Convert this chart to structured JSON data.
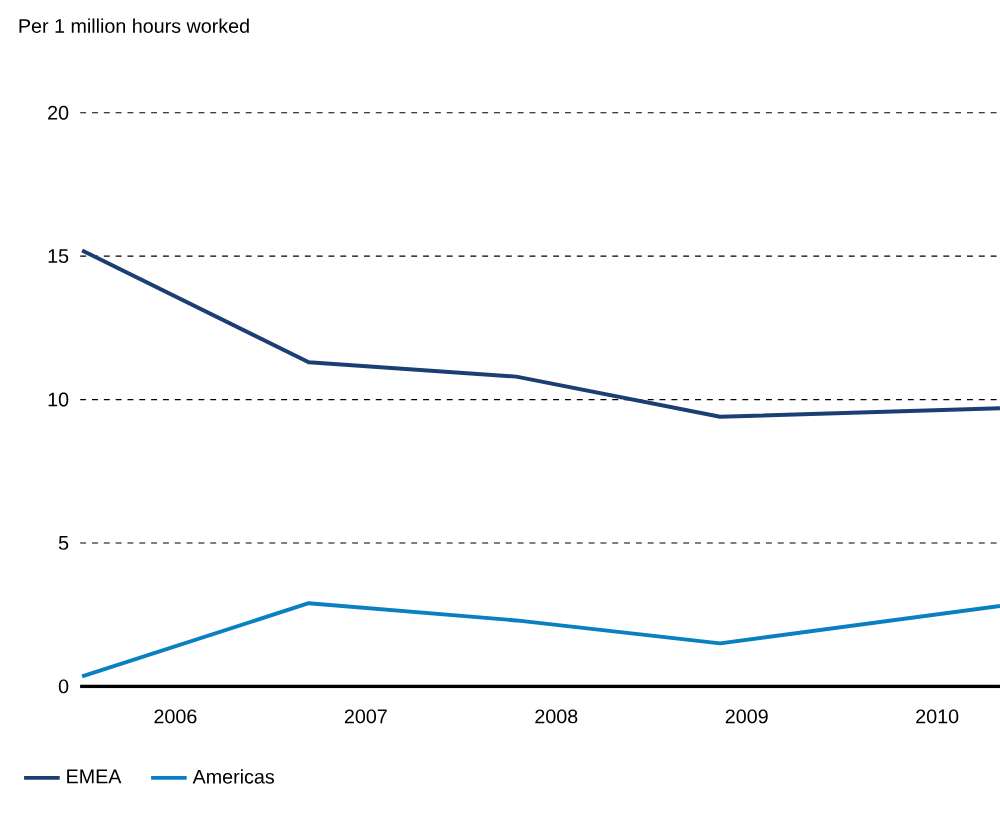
{
  "chart_data": {
    "type": "line",
    "ylabel": "Per 1 million hours worked",
    "xlim": [
      2005.5,
      2010.33
    ],
    "xticks": [
      2006,
      2007,
      2008,
      2009,
      2010
    ],
    "ylim": [
      0,
      20
    ],
    "yticks": [
      0,
      5,
      10,
      15,
      20
    ],
    "x": [
      2005.51,
      2006.7,
      2007.79,
      2008.86,
      2010.33
    ],
    "series": [
      {
        "name": "EMEA",
        "color": "#1c3f73",
        "values": [
          15.2,
          11.3,
          10.8,
          9.4,
          9.7
        ]
      },
      {
        "name": "Americas",
        "color": "#0a80c2",
        "values": [
          0.35,
          2.9,
          2.3,
          1.5,
          2.8
        ]
      }
    ],
    "grid": "y",
    "legend": "bottom",
    "marker": "none",
    "line_style": "solid"
  }
}
